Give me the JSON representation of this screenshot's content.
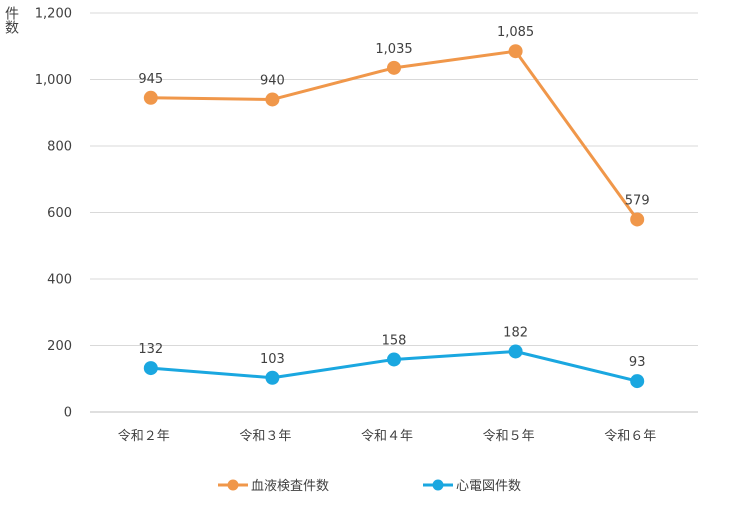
{
  "chart_data": {
    "type": "line",
    "title": "",
    "ylabel": "件数",
    "xlabel": "",
    "categories": [
      "令和２年",
      "令和３年",
      "令和４年",
      "令和５年",
      "令和６年"
    ],
    "y_ticks": [
      "0",
      "200",
      "400",
      "600",
      "800",
      "1,000",
      "1,200"
    ],
    "ylim": [
      0,
      1200
    ],
    "grid": true,
    "legend_position": "bottom",
    "series": [
      {
        "name": "血液検査件数",
        "color": "#F0974A",
        "values": [
          945,
          940,
          1035,
          1085,
          579
        ],
        "labels": [
          "945",
          "940",
          "1,035",
          "1,085",
          "579"
        ]
      },
      {
        "name": "心電図件数",
        "color": "#1AA7E0",
        "values": [
          132,
          103,
          158,
          182,
          93
        ],
        "labels": [
          "132",
          "103",
          "158",
          "182",
          "93"
        ]
      }
    ]
  }
}
